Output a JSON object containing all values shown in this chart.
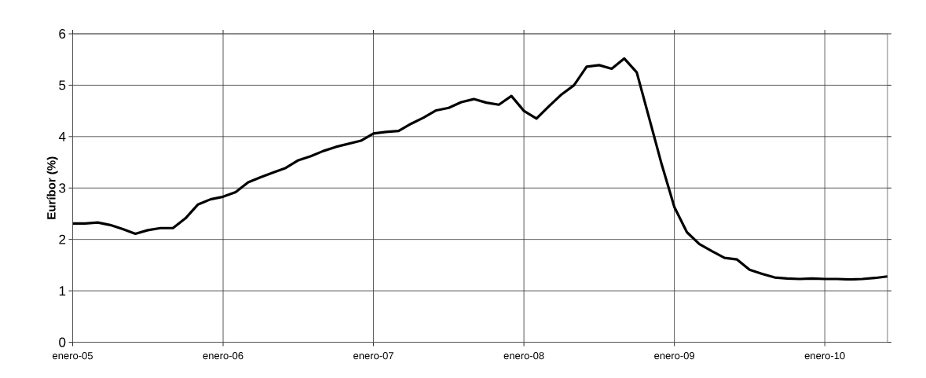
{
  "chart_data": {
    "type": "line",
    "ylabel": "Euríbor (%)",
    "x": [
      "2005-01",
      "2005-02",
      "2005-03",
      "2005-04",
      "2005-05",
      "2005-06",
      "2005-07",
      "2005-08",
      "2005-09",
      "2005-10",
      "2005-11",
      "2005-12",
      "2006-01",
      "2006-02",
      "2006-03",
      "2006-04",
      "2006-05",
      "2006-06",
      "2006-07",
      "2006-08",
      "2006-09",
      "2006-10",
      "2006-11",
      "2006-12",
      "2007-01",
      "2007-02",
      "2007-03",
      "2007-04",
      "2007-05",
      "2007-06",
      "2007-07",
      "2007-08",
      "2007-09",
      "2007-10",
      "2007-11",
      "2007-12",
      "2008-01",
      "2008-02",
      "2008-03",
      "2008-04",
      "2008-05",
      "2008-06",
      "2008-07",
      "2008-08",
      "2008-09",
      "2008-10",
      "2008-11",
      "2008-12",
      "2009-01",
      "2009-02",
      "2009-03",
      "2009-04",
      "2009-05",
      "2009-06",
      "2009-07",
      "2009-08",
      "2009-09",
      "2009-10",
      "2009-11",
      "2009-12",
      "2010-01",
      "2010-02",
      "2010-03",
      "2010-04",
      "2010-05",
      "2010-06"
    ],
    "series": [
      {
        "color": "#000000",
        "values": [
          2.31,
          2.31,
          2.33,
          2.28,
          2.2,
          2.11,
          2.18,
          2.22,
          2.22,
          2.41,
          2.68,
          2.78,
          2.83,
          2.92,
          3.11,
          3.21,
          3.3,
          3.39,
          3.54,
          3.62,
          3.72,
          3.8,
          3.86,
          3.92,
          4.06,
          4.09,
          4.11,
          4.25,
          4.37,
          4.51,
          4.56,
          4.67,
          4.73,
          4.66,
          4.62,
          4.79,
          4.5,
          4.35,
          4.59,
          4.82,
          5.0,
          5.36,
          5.39,
          5.32,
          5.52,
          5.25,
          4.35,
          3.45,
          2.63,
          2.14,
          1.91,
          1.77,
          1.64,
          1.61,
          1.41,
          1.33,
          1.26,
          1.24,
          1.23,
          1.24,
          1.23,
          1.23,
          1.22,
          1.23,
          1.25,
          1.28
        ]
      }
    ],
    "xlim": [
      "2005-01",
      "2010-06"
    ],
    "xticks": [
      {
        "value": "2005-01",
        "label": "enero-05"
      },
      {
        "value": "2006-01",
        "label": "enero-06"
      },
      {
        "value": "2007-01",
        "label": "enero-07"
      },
      {
        "value": "2008-01",
        "label": "enero-08"
      },
      {
        "value": "2009-01",
        "label": "enero-09"
      },
      {
        "value": "2010-01",
        "label": "enero-10"
      }
    ],
    "ylim": [
      0,
      6
    ],
    "yticks": [
      0,
      1,
      2,
      3,
      4,
      5,
      6
    ],
    "grid": true,
    "marker": "none",
    "line_style": "solid"
  }
}
